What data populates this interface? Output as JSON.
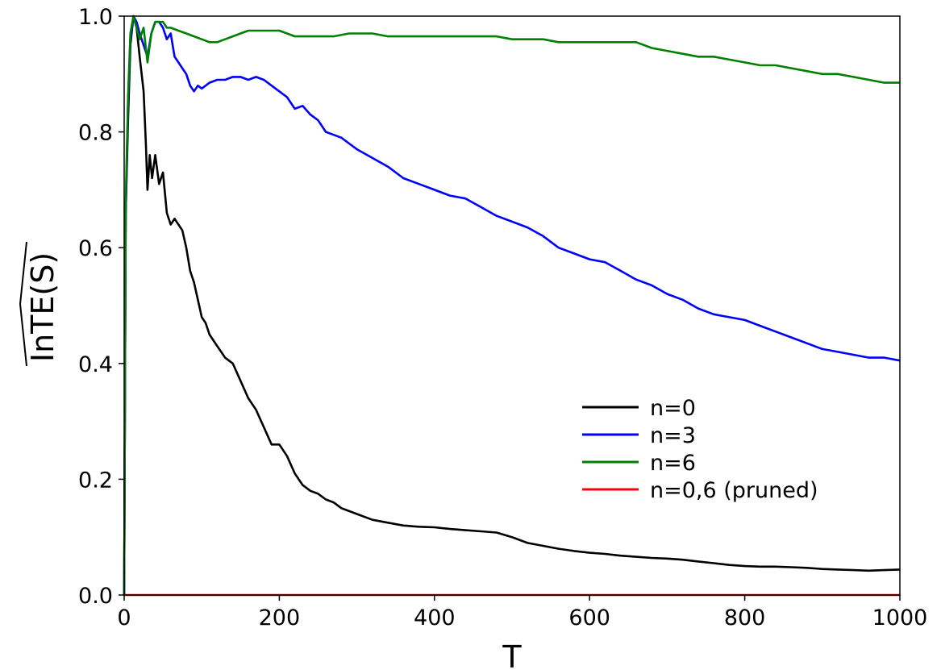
{
  "chart_data": {
    "type": "line",
    "xlabel": "T",
    "ylabel": "InTE(S)",
    "xlim": [
      0,
      1000
    ],
    "ylim": [
      0.0,
      1.0
    ],
    "xticks": [
      "0",
      "200",
      "400",
      "600",
      "800",
      "1000"
    ],
    "yticks": [
      "0.0",
      "0.2",
      "0.4",
      "0.6",
      "0.8",
      "1.0"
    ],
    "grid": false,
    "legend_position": "right",
    "series": [
      {
        "name": "n=0",
        "color": "#000000",
        "x": [
          0,
          2,
          5,
          8,
          12,
          16,
          20,
          25,
          28,
          30,
          33,
          36,
          40,
          45,
          50,
          55,
          60,
          65,
          70,
          75,
          80,
          85,
          90,
          95,
          100,
          105,
          110,
          115,
          120,
          125,
          130,
          140,
          150,
          160,
          170,
          180,
          190,
          200,
          210,
          220,
          230,
          240,
          250,
          260,
          270,
          280,
          290,
          300,
          320,
          340,
          360,
          380,
          400,
          420,
          440,
          460,
          480,
          500,
          520,
          540,
          560,
          580,
          600,
          620,
          640,
          660,
          680,
          700,
          720,
          740,
          760,
          780,
          800,
          820,
          840,
          860,
          880,
          900,
          920,
          940,
          960,
          980,
          1000
        ],
        "y": [
          0.0,
          0.66,
          0.82,
          0.95,
          1.0,
          0.98,
          0.93,
          0.87,
          0.78,
          0.7,
          0.76,
          0.72,
          0.76,
          0.71,
          0.73,
          0.66,
          0.64,
          0.65,
          0.64,
          0.63,
          0.6,
          0.56,
          0.54,
          0.51,
          0.48,
          0.47,
          0.45,
          0.44,
          0.43,
          0.42,
          0.41,
          0.4,
          0.37,
          0.34,
          0.32,
          0.29,
          0.26,
          0.26,
          0.24,
          0.21,
          0.19,
          0.18,
          0.175,
          0.165,
          0.16,
          0.15,
          0.145,
          0.14,
          0.13,
          0.125,
          0.12,
          0.118,
          0.117,
          0.114,
          0.112,
          0.11,
          0.108,
          0.1,
          0.09,
          0.085,
          0.08,
          0.076,
          0.073,
          0.071,
          0.068,
          0.066,
          0.064,
          0.063,
          0.061,
          0.058,
          0.055,
          0.052,
          0.05,
          0.049,
          0.049,
          0.048,
          0.047,
          0.045,
          0.044,
          0.043,
          0.042,
          0.043,
          0.044
        ]
      },
      {
        "name": "n=3",
        "color": "#0000ff",
        "x": [
          0,
          2,
          5,
          8,
          12,
          16,
          20,
          25,
          30,
          35,
          40,
          45,
          50,
          55,
          60,
          65,
          70,
          75,
          80,
          85,
          90,
          95,
          100,
          110,
          120,
          130,
          140,
          150,
          160,
          170,
          180,
          190,
          200,
          210,
          220,
          230,
          240,
          250,
          260,
          270,
          280,
          290,
          300,
          320,
          340,
          360,
          380,
          400,
          420,
          440,
          460,
          480,
          500,
          520,
          540,
          560,
          580,
          600,
          620,
          640,
          660,
          680,
          700,
          720,
          740,
          760,
          780,
          800,
          820,
          840,
          860,
          880,
          900,
          920,
          940,
          960,
          980,
          1000
        ],
        "y": [
          0.0,
          0.66,
          0.85,
          0.96,
          1.0,
          0.99,
          0.97,
          0.95,
          0.93,
          0.97,
          0.99,
          0.99,
          0.98,
          0.96,
          0.97,
          0.93,
          0.92,
          0.91,
          0.9,
          0.88,
          0.87,
          0.88,
          0.875,
          0.885,
          0.89,
          0.89,
          0.895,
          0.895,
          0.89,
          0.895,
          0.89,
          0.88,
          0.87,
          0.86,
          0.84,
          0.845,
          0.83,
          0.82,
          0.8,
          0.795,
          0.79,
          0.78,
          0.77,
          0.755,
          0.74,
          0.72,
          0.71,
          0.7,
          0.69,
          0.685,
          0.67,
          0.655,
          0.645,
          0.635,
          0.62,
          0.6,
          0.59,
          0.58,
          0.575,
          0.56,
          0.545,
          0.535,
          0.52,
          0.51,
          0.495,
          0.485,
          0.48,
          0.475,
          0.465,
          0.455,
          0.445,
          0.435,
          0.425,
          0.42,
          0.415,
          0.41,
          0.41,
          0.405
        ]
      },
      {
        "name": "n=6",
        "color": "#008000",
        "x": [
          0,
          2,
          5,
          8,
          12,
          16,
          20,
          25,
          30,
          35,
          40,
          45,
          50,
          55,
          60,
          70,
          80,
          90,
          100,
          110,
          120,
          130,
          140,
          150,
          160,
          170,
          180,
          190,
          200,
          210,
          220,
          230,
          250,
          270,
          290,
          300,
          320,
          340,
          360,
          380,
          400,
          420,
          440,
          460,
          480,
          500,
          520,
          540,
          560,
          580,
          600,
          620,
          640,
          660,
          680,
          700,
          720,
          740,
          760,
          780,
          800,
          820,
          840,
          860,
          880,
          900,
          920,
          940,
          960,
          980,
          1000
        ],
        "y": [
          0.0,
          0.68,
          0.86,
          0.97,
          1.0,
          0.98,
          0.96,
          0.98,
          0.92,
          0.97,
          0.99,
          0.99,
          0.99,
          0.98,
          0.98,
          0.975,
          0.97,
          0.965,
          0.96,
          0.955,
          0.955,
          0.96,
          0.965,
          0.97,
          0.975,
          0.975,
          0.975,
          0.975,
          0.975,
          0.97,
          0.965,
          0.965,
          0.965,
          0.965,
          0.97,
          0.97,
          0.97,
          0.965,
          0.965,
          0.965,
          0.965,
          0.965,
          0.965,
          0.965,
          0.965,
          0.96,
          0.96,
          0.96,
          0.955,
          0.955,
          0.955,
          0.955,
          0.955,
          0.955,
          0.945,
          0.94,
          0.935,
          0.93,
          0.93,
          0.925,
          0.92,
          0.915,
          0.915,
          0.91,
          0.905,
          0.9,
          0.9,
          0.895,
          0.89,
          0.885,
          0.885
        ]
      },
      {
        "name": "n=0,6 (pruned)",
        "color": "#ff0000",
        "x": [
          0,
          1000
        ],
        "y": [
          0.0,
          0.0
        ]
      }
    ]
  }
}
